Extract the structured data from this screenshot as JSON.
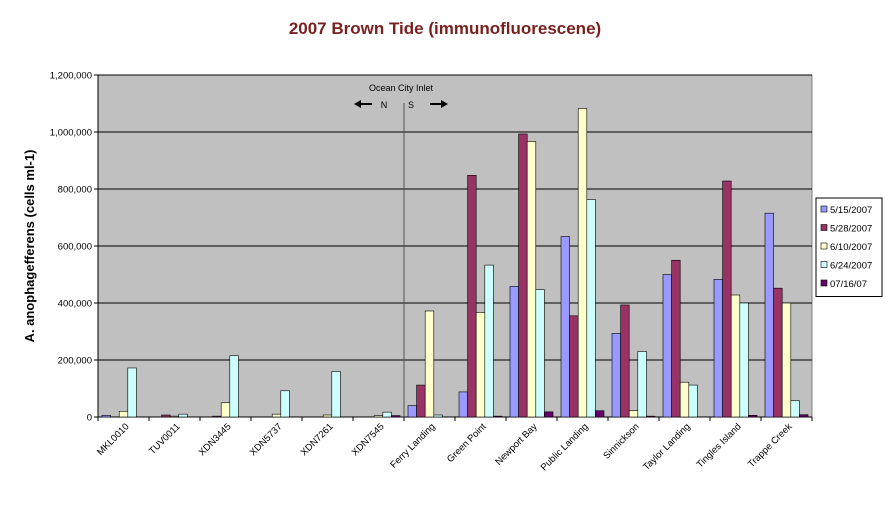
{
  "chart_data": {
    "type": "bar",
    "title": "2007 Brown Tide (immunofluorescene)",
    "ylabel": "A. anophagefferens (cells ml-1)",
    "xlabel": "",
    "ylim": [
      0,
      1200000
    ],
    "yticks": [
      0,
      200000,
      400000,
      600000,
      800000,
      1000000,
      1200000
    ],
    "ytick_labels": [
      "0",
      "200,000",
      "400,000",
      "600,000",
      "800,000",
      "1,000,000",
      "1,200,000"
    ],
    "grid": true,
    "legend_position": "right",
    "categories": [
      "MKL0010",
      "TUV0011",
      "XDN3445",
      "XDN5737",
      "XDN7261",
      "XDN7545",
      "Ferry Landing",
      "Green Point",
      "Newport Bay",
      "Public Landing",
      "Sinnickson",
      "Taylor Landing",
      "Tingles Island",
      "Trappe Creek"
    ],
    "series": [
      {
        "name": "5/15/2007",
        "color": "#9999ff",
        "values": [
          6000,
          0,
          0,
          0,
          0,
          0,
          40000,
          88000,
          458000,
          633000,
          293000,
          500000,
          483000,
          715000
        ]
      },
      {
        "name": "5/28/2007",
        "color": "#993366",
        "values": [
          0,
          7000,
          3000,
          0,
          0,
          0,
          112000,
          848000,
          993000,
          355000,
          393000,
          550000,
          828000,
          452000
        ]
      },
      {
        "name": "6/10/2007",
        "color": "#ffffcc",
        "values": [
          20000,
          3000,
          50000,
          10000,
          7000,
          5000,
          372000,
          367000,
          967000,
          1083000,
          22000,
          122000,
          428000,
          400000
        ]
      },
      {
        "name": "6/24/2007",
        "color": "#ccffff",
        "values": [
          172000,
          10000,
          215000,
          92000,
          160000,
          17000,
          7000,
          533000,
          447000,
          763000,
          230000,
          112000,
          400000,
          57000
        ]
      },
      {
        "name": "07/16/07",
        "color": "#660066",
        "values": [
          0,
          0,
          0,
          0,
          0,
          5000,
          0,
          3000,
          18000,
          22000,
          3000,
          0,
          6000,
          8000
        ]
      }
    ],
    "annotation": {
      "text": "Ocean City Inlet",
      "north": "N",
      "south": "S",
      "after_category": "XDN7545"
    }
  },
  "style": {
    "plot_background": "#c0c0c0",
    "title_color": "#7a1f1f",
    "gridline_color": "#000000"
  }
}
